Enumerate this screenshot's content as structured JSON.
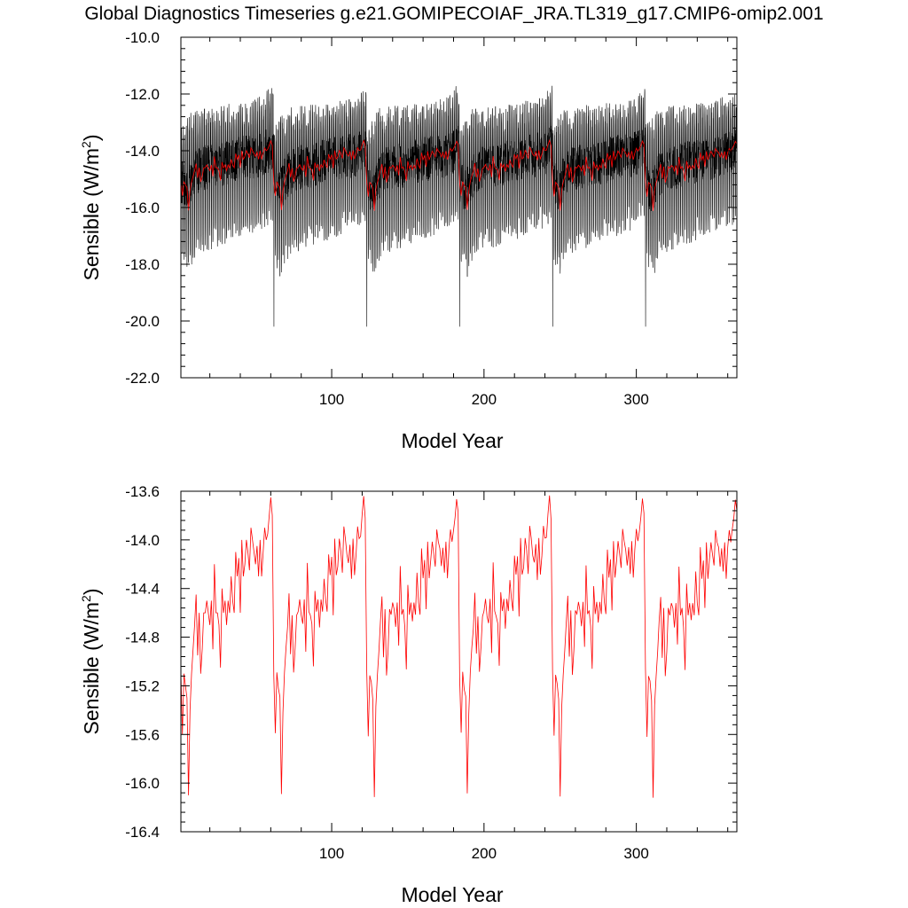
{
  "figure": {
    "title": "Global Diagnostics Timeseries g.e21.GOMIPECOIAF_JRA.TL319_g17.CMIP6-omip2.001"
  },
  "colors": {
    "monthly_series": "#000000",
    "annual_series": "#ff0000",
    "axes": "#000000",
    "background": "#ffffff"
  },
  "chart_data": [
    {
      "type": "line",
      "title": "Global Diagnostics Timeseries g.e21.GOMIPECOIAF_JRA.TL319_g17.CMIP6-omip2.001",
      "xlabel": "Model Year",
      "ylabel_main": "Sensible (W/m",
      "ylabel_sup": "2",
      "ylabel_close": ")",
      "xlim": [
        1,
        366
      ],
      "ylim": [
        -22.0,
        -10.0
      ],
      "x_ticks": [
        100,
        200,
        300
      ],
      "x_tick_labels": [
        "100",
        "200",
        "300"
      ],
      "y_ticks": [
        -10.0,
        -12.0,
        -14.0,
        -16.0,
        -18.0,
        -20.0,
        -22.0
      ],
      "y_tick_labels": [
        "-10.0",
        "-12.0",
        "-14.0",
        "-16.0",
        "-18.0",
        "-20.0",
        "-22.0"
      ],
      "grid": false,
      "legend": "none",
      "cycle_length_years": 61,
      "cycle_starts": [
        1,
        62,
        123,
        184,
        245,
        306
      ],
      "series": [
        {
          "key": "monthly",
          "color": "#000000",
          "samples_per_year": 12,
          "cycle_mean_keypoints": [
            [
              0,
              -15.1
            ],
            [
              4,
              -15.4
            ],
            [
              8,
              -14.9
            ],
            [
              14,
              -14.6
            ],
            [
              22,
              -14.55
            ],
            [
              32,
              -14.4
            ],
            [
              42,
              -14.25
            ],
            [
              52,
              -14.15
            ],
            [
              58,
              -14.0
            ],
            [
              60,
              -13.9
            ]
          ],
          "seasonal_low_keypoints": [
            [
              0,
              -17.6
            ],
            [
              5,
              -18.3
            ],
            [
              10,
              -17.4
            ],
            [
              20,
              -17.2
            ],
            [
              35,
              -16.9
            ],
            [
              50,
              -16.6
            ],
            [
              60,
              -16.3
            ]
          ],
          "seasonal_high_keypoints": [
            [
              0,
              -13.6
            ],
            [
              8,
              -13.0
            ],
            [
              20,
              -12.9
            ],
            [
              40,
              -12.8
            ],
            [
              55,
              -12.5
            ],
            [
              60,
              -12.1
            ]
          ],
          "cycle_minimum": -20.2
        },
        {
          "key": "annual",
          "color": "#ff0000",
          "samples_per_year": 1,
          "cycle_keypoints": [
            [
              0,
              -15.1
            ],
            [
              1,
              -15.6
            ],
            [
              2,
              -15.1
            ],
            [
              3,
              -15.2
            ],
            [
              4,
              -15.3
            ],
            [
              5,
              -16.1
            ],
            [
              6,
              -15.4
            ],
            [
              7,
              -15.1
            ],
            [
              8,
              -14.9
            ],
            [
              9,
              -14.7
            ],
            [
              10,
              -14.45
            ],
            [
              11,
              -14.95
            ],
            [
              12,
              -14.6
            ],
            [
              13,
              -15.1
            ],
            [
              14,
              -14.9
            ],
            [
              15,
              -14.6
            ],
            [
              16,
              -14.6
            ],
            [
              17,
              -14.5
            ],
            [
              18,
              -14.6
            ],
            [
              19,
              -14.7
            ],
            [
              20,
              -14.5
            ],
            [
              21,
              -14.9
            ],
            [
              22,
              -14.2
            ],
            [
              23,
              -14.6
            ],
            [
              24,
              -14.6
            ],
            [
              25,
              -14.7
            ],
            [
              26,
              -15.05
            ],
            [
              27,
              -14.4
            ],
            [
              28,
              -14.6
            ],
            [
              29,
              -14.5
            ],
            [
              30,
              -14.7
            ],
            [
              31,
              -14.5
            ],
            [
              32,
              -14.6
            ],
            [
              33,
              -14.3
            ],
            [
              34,
              -14.5
            ],
            [
              35,
              -14.6
            ],
            [
              36,
              -14.1
            ],
            [
              37,
              -14.3
            ],
            [
              38,
              -14.15
            ],
            [
              39,
              -14.6
            ],
            [
              40,
              -14.0
            ],
            [
              41,
              -14.3
            ],
            [
              42,
              -14.2
            ],
            [
              43,
              -14.0
            ],
            [
              44,
              -14.1
            ],
            [
              45,
              -14.25
            ],
            [
              46,
              -13.9
            ],
            [
              47,
              -14.0
            ],
            [
              48,
              -14.1
            ],
            [
              49,
              -14.2
            ],
            [
              50,
              -14.05
            ],
            [
              51,
              -14.3
            ],
            [
              52,
              -14.0
            ],
            [
              53,
              -14.3
            ],
            [
              54,
              -14.1
            ],
            [
              55,
              -13.9
            ],
            [
              56,
              -14.0
            ],
            [
              57,
              -13.95
            ],
            [
              58,
              -13.8
            ],
            [
              59,
              -13.65
            ],
            [
              60,
              -13.8
            ]
          ]
        }
      ]
    },
    {
      "type": "line",
      "xlabel": "Model Year",
      "ylabel_main": "Sensible (W/m",
      "ylabel_sup": "2",
      "ylabel_close": ")",
      "xlim": [
        1,
        366
      ],
      "ylim": [
        -16.4,
        -13.6
      ],
      "x_ticks": [
        100,
        200,
        300
      ],
      "x_tick_labels": [
        "100",
        "200",
        "300"
      ],
      "y_ticks": [
        -13.6,
        -14.0,
        -14.4,
        -14.8,
        -15.2,
        -15.6,
        -16.0,
        -16.4
      ],
      "y_tick_labels": [
        "-13.6",
        "-14.0",
        "-14.4",
        "-14.8",
        "-15.2",
        "-15.6",
        "-16.0",
        "-16.4"
      ],
      "grid": false,
      "legend": "none",
      "series": [
        {
          "key": "annual",
          "color": "#ff0000",
          "samples_per_year": 1
        }
      ]
    }
  ]
}
